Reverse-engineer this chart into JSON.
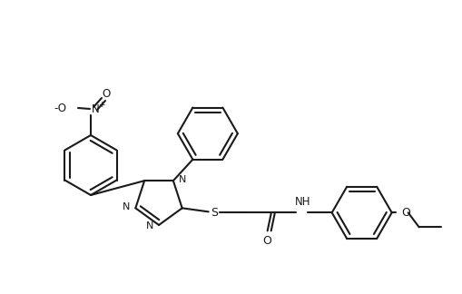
{
  "background_color": "#ffffff",
  "line_color": "#1a1a1a",
  "line_width": 1.5,
  "fig_width": 5.1,
  "fig_height": 3.24,
  "dpi": 100,
  "r6": 33,
  "r5": 27,
  "no2_n_label": "N",
  "no2_plus": "+",
  "no2_ominus": "-O",
  "no2_o": "O",
  "s_label": "S",
  "o_label": "O",
  "nh_label": "NH",
  "n_label": "N"
}
